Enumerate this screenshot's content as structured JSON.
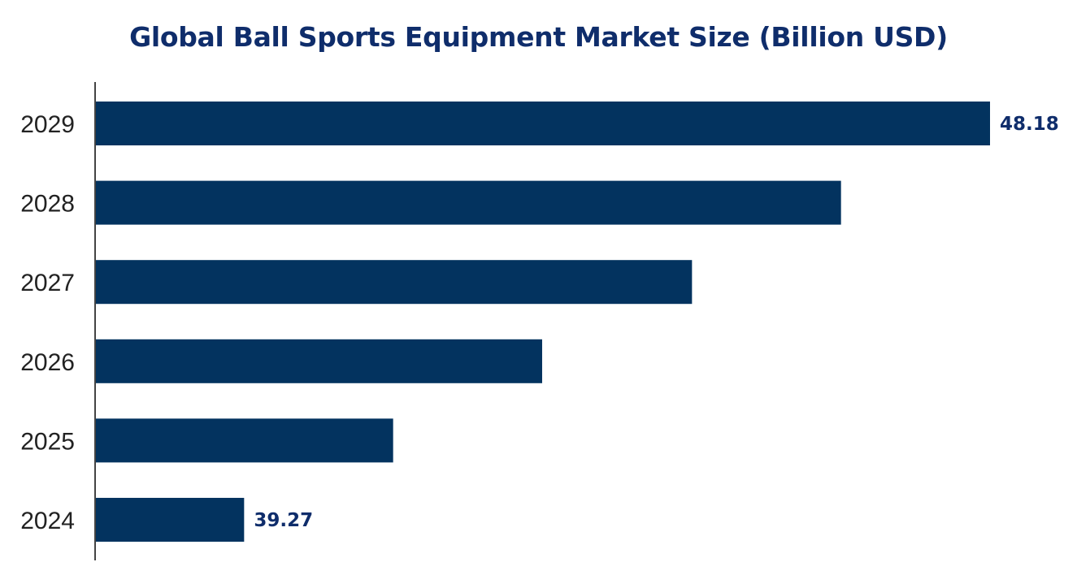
{
  "chart_data": {
    "type": "bar",
    "orientation": "horizontal",
    "title": "Global Ball Sports Equipment Market Size (Billion USD)",
    "categories": [
      "2029",
      "2028",
      "2027",
      "2026",
      "2025",
      "2024"
    ],
    "values": [
      48.18,
      46.4,
      44.62,
      42.83,
      41.05,
      39.27
    ],
    "data_labels": [
      "48.18",
      "",
      "",
      "",
      "",
      "39.27"
    ],
    "xlim": [
      37.49,
      48.6
    ],
    "xlabel": "",
    "ylabel": "",
    "grid": false,
    "colors": {
      "bar": "#03335f",
      "title": "#0f2d6b",
      "label": "#0f2d6b",
      "axis": "#444444"
    }
  }
}
